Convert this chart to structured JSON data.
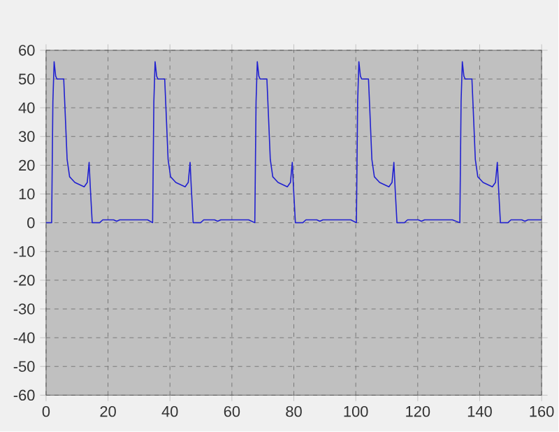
{
  "chart_data": {
    "type": "line",
    "xlim": [
      0,
      160
    ],
    "ylim": [
      -60,
      60
    ],
    "xticks": [
      0,
      20,
      40,
      60,
      80,
      100,
      120,
      140,
      160
    ],
    "yticks": [
      -60,
      -50,
      -40,
      -30,
      -20,
      -10,
      0,
      10,
      20,
      30,
      40,
      50,
      60
    ],
    "grid": true,
    "marker": "none",
    "line_style": "solid",
    "series": [
      {
        "color": "#2020d0",
        "x": [
          0,
          1.8,
          2.2,
          2.6,
          3.1,
          3.5,
          5.7,
          6.1,
          6.8,
          7.6,
          9.3,
          12.3,
          13.3,
          13.9,
          14.3,
          14.9,
          17.3,
          18.3,
          21.8,
          22.8,
          23.8,
          32.8,
          34.4,
          34.8,
          35.2,
          35.7,
          36.1,
          38.3,
          38.7,
          39.4,
          40.2,
          41.9,
          44.9,
          45.9,
          46.5,
          46.9,
          47.5,
          49.9,
          50.9,
          54.4,
          55.4,
          56.4,
          65.4,
          67.4,
          67.8,
          68.2,
          68.7,
          69.1,
          71.3,
          71.7,
          72.4,
          73.2,
          74.9,
          77.9,
          78.9,
          79.5,
          79.9,
          80.5,
          82.9,
          83.9,
          87.4,
          88.4,
          89.4,
          98.4,
          100.2,
          100.6,
          101,
          101.5,
          101.9,
          104.1,
          104.5,
          105.2,
          106,
          107.7,
          110.7,
          111.7,
          112.3,
          112.7,
          113.3,
          115.7,
          116.7,
          120.2,
          121.2,
          122.2,
          131.2,
          133.6,
          134,
          134.4,
          134.9,
          135.3,
          137.5,
          137.9,
          138.6,
          139.4,
          141.1,
          144.1,
          145.1,
          145.7,
          146.1,
          146.7,
          149.1,
          150.1,
          153.6,
          154.6,
          155.6,
          160
        ],
        "values": [
          0,
          0,
          42,
          56,
          51,
          50,
          50,
          40,
          22,
          16,
          14,
          12.5,
          14,
          21,
          12,
          0,
          0,
          1,
          1,
          0.5,
          1,
          1,
          0,
          42,
          56,
          51,
          50,
          50,
          40,
          22,
          16,
          14,
          12.5,
          14,
          21,
          12,
          0,
          0,
          1,
          1,
          0.5,
          1,
          1,
          0,
          42,
          56,
          51,
          50,
          50,
          40,
          22,
          16,
          14,
          12.5,
          14,
          21,
          12,
          0,
          0,
          1,
          1,
          0.5,
          1,
          1,
          0,
          42,
          56,
          51,
          50,
          50,
          40,
          22,
          16,
          14,
          12.5,
          14,
          21,
          12,
          0,
          0,
          1,
          1,
          0.5,
          1,
          1,
          0,
          42,
          56,
          51,
          50,
          50,
          40,
          22,
          16,
          14,
          12.5,
          14,
          21,
          12,
          0,
          0,
          1,
          1,
          0.5,
          1,
          1
        ]
      }
    ]
  }
}
